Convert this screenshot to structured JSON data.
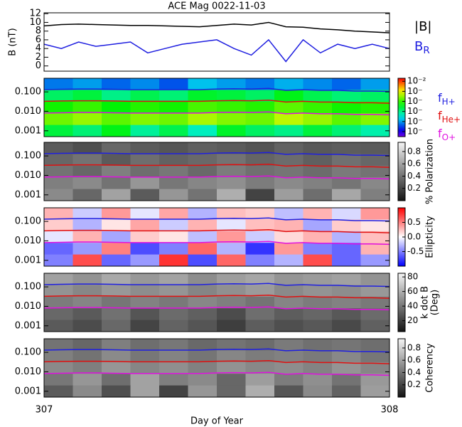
{
  "chart_data": [
    {
      "type": "line",
      "title": "ACE Mag 0022-11-03",
      "ylabel": "B (nT)",
      "xlim": [
        307,
        308
      ],
      "ylim": [
        -1.2,
        12.2
      ],
      "yticks": [
        0,
        2,
        4,
        6,
        8,
        10,
        12
      ],
      "x": [
        307,
        307.05,
        307.1,
        307.15,
        307.2,
        307.25,
        307.3,
        307.35,
        307.4,
        307.45,
        307.5,
        307.55,
        307.6,
        307.65,
        307.7,
        307.75,
        307.8,
        307.85,
        307.9,
        307.95,
        308
      ],
      "series": [
        {
          "name": "|B|",
          "color": "#000000",
          "values": [
            9.2,
            9.5,
            9.6,
            9.5,
            9.4,
            9.3,
            9.3,
            9.2,
            9.1,
            9.0,
            9.3,
            9.6,
            9.4,
            10.0,
            9.0,
            8.9,
            8.5,
            8.3,
            8.0,
            7.8,
            7.6
          ]
        },
        {
          "name": "B",
          "subscript": "R",
          "color": "#1f1fe0",
          "values": [
            5,
            4,
            5.5,
            4.5,
            5,
            5.5,
            3,
            4,
            5,
            5.5,
            6,
            4,
            2.5,
            6,
            1,
            6,
            3,
            5,
            4,
            5,
            4
          ]
        }
      ]
    },
    {
      "type": "heatmap",
      "colormap": "rainbow",
      "xlim": [
        307,
        308
      ],
      "ylim": [
        0.0005,
        0.5
      ],
      "log_y": true,
      "yticks": [
        {
          "value": 0.001,
          "label": "0.001"
        },
        {
          "value": 0.01,
          "label": "0.010"
        },
        {
          "value": 0.1,
          "label": "0.100"
        }
      ],
      "clim": [
        -7.5,
        -1.7
      ],
      "colorbar_ticks": [
        {
          "value": -2,
          "label": "10⁻²"
        },
        {
          "value": -3,
          "label": "10⁻"
        },
        {
          "value": -4,
          "label": "10⁻"
        },
        {
          "value": -5,
          "label": "10⁻"
        },
        {
          "value": -6,
          "label": "10⁻"
        },
        {
          "value": -7,
          "label": "10⁻"
        }
      ],
      "z": [
        [
          -6.2,
          -6.0,
          -6.3,
          -6.1,
          -6.4,
          -5.8,
          -6.0,
          -6.2,
          -5.9,
          -6.1,
          -6.3,
          -6.0
        ],
        [
          -4.8,
          -4.6,
          -5.0,
          -4.7,
          -4.9,
          -4.5,
          -4.6,
          -4.8,
          -4.4,
          -4.7,
          -4.9,
          -4.8
        ],
        [
          -4.2,
          -4.0,
          -4.3,
          -4.1,
          -4.2,
          -3.9,
          -4.0,
          -4.1,
          -3.8,
          -4.0,
          -4.2,
          -4.1
        ],
        [
          -3.7,
          -3.5,
          -3.8,
          -3.6,
          -3.7,
          -3.4,
          -3.6,
          -3.7,
          -3.3,
          -3.5,
          -3.8,
          -3.6
        ],
        [
          -4.6,
          -4.9,
          -4.4,
          -5.1,
          -4.7,
          -5.3,
          -4.5,
          -4.8,
          -5.0,
          -4.6,
          -4.9,
          -5.2
        ]
      ],
      "x": [
        307,
        307.05,
        307.1,
        307.15,
        307.2,
        307.25,
        307.3,
        307.35,
        307.4,
        307.45,
        307.5,
        307.55,
        307.6,
        307.65,
        307.7,
        307.75,
        307.8,
        307.85,
        307.9,
        307.95,
        308
      ],
      "series": [
        {
          "name": "f",
          "subscript": "H+",
          "color": "#1f1fe0",
          "values": [
            0.13,
            0.135,
            0.14,
            0.14,
            0.135,
            0.13,
            0.13,
            0.13,
            0.13,
            0.13,
            0.14,
            0.145,
            0.14,
            0.15,
            0.12,
            0.13,
            0.12,
            0.12,
            0.11,
            0.11,
            0.105
          ]
        },
        {
          "name": "f",
          "subscript": "He+",
          "color": "#e01010",
          "values": [
            0.0325,
            0.034,
            0.035,
            0.035,
            0.034,
            0.0325,
            0.0325,
            0.0325,
            0.0325,
            0.0325,
            0.035,
            0.036,
            0.035,
            0.0375,
            0.03,
            0.0325,
            0.03,
            0.03,
            0.0275,
            0.0275,
            0.026
          ]
        },
        {
          "name": "f",
          "subscript": "O+",
          "color": "#e010e0",
          "values": [
            0.0081,
            0.0084,
            0.0088,
            0.0088,
            0.0084,
            0.0081,
            0.0081,
            0.0081,
            0.0081,
            0.0081,
            0.0088,
            0.0091,
            0.0088,
            0.0094,
            0.0075,
            0.0081,
            0.0075,
            0.0075,
            0.0069,
            0.0069,
            0.0066
          ]
        }
      ]
    },
    {
      "type": "heatmap",
      "colormap": "gray",
      "xlim": [
        307,
        308
      ],
      "ylim": [
        0.0005,
        0.5
      ],
      "log_y": true,
      "yticks": [
        {
          "value": 0.001,
          "label": "0.001"
        },
        {
          "value": 0.01,
          "label": "0.010"
        },
        {
          "value": 0.1,
          "label": "0.100"
        }
      ],
      "clim": [
        0,
        0.95
      ],
      "colorbar_ticks": [
        0.2,
        0.4,
        0.6,
        0.8
      ],
      "colorbar_label": [
        "% Polarization"
      ],
      "z": [
        [
          0.3,
          0.25,
          0.35,
          0.3,
          0.28,
          0.32,
          0.3,
          0.27,
          0.33,
          0.29,
          0.31,
          0.3
        ],
        [
          0.35,
          0.4,
          0.3,
          0.38,
          0.33,
          0.36,
          0.4,
          0.34,
          0.37,
          0.32,
          0.39,
          0.35
        ],
        [
          0.4,
          0.35,
          0.45,
          0.38,
          0.42,
          0.36,
          0.44,
          0.39,
          0.41,
          0.37,
          0.43,
          0.4
        ],
        [
          0.45,
          0.5,
          0.4,
          0.55,
          0.42,
          0.48,
          0.52,
          0.44,
          0.5,
          0.46,
          0.41,
          0.49
        ],
        [
          0.5,
          0.35,
          0.6,
          0.3,
          0.55,
          0.4,
          0.65,
          0.2,
          0.58,
          0.38,
          0.62,
          0.45
        ]
      ]
    },
    {
      "type": "heatmap",
      "colormap": "bwr",
      "xlim": [
        307,
        308
      ],
      "ylim": [
        0.0005,
        0.5
      ],
      "log_y": true,
      "yticks": [
        {
          "value": 0.001,
          "label": "0.001"
        },
        {
          "value": 0.01,
          "label": "0.010"
        },
        {
          "value": 0.1,
          "label": "0.100"
        }
      ],
      "clim": [
        -1,
        1
      ],
      "colorbar_ticks": [
        0.5,
        {
          "value": 0,
          "label": "0.0"
        },
        -0.5
      ],
      "colorbar_label": [
        "Ellipticity"
      ],
      "z": [
        [
          0.3,
          -0.2,
          0.4,
          -0.1,
          0.35,
          -0.3,
          0.25,
          0.2,
          -0.25,
          0.3,
          -0.15,
          0.4
        ],
        [
          0.2,
          -0.3,
          0.1,
          0.35,
          -0.2,
          0.3,
          -0.1,
          0.25,
          0.3,
          -0.35,
          0.2,
          0.1
        ],
        [
          -0.1,
          0.3,
          -0.35,
          0.2,
          0.1,
          -0.25,
          0.4,
          -0.2,
          0.15,
          0.3,
          -0.3,
          0.25
        ],
        [
          -0.6,
          -0.4,
          0.5,
          -0.7,
          -0.5,
          0.6,
          -0.3,
          -0.8,
          0.4,
          -0.5,
          -0.6,
          0.3
        ],
        [
          -0.5,
          0.7,
          -0.6,
          -0.4,
          0.8,
          -0.7,
          0.6,
          -0.5,
          -0.3,
          0.7,
          -0.6,
          -0.4
        ]
      ]
    },
    {
      "type": "heatmap",
      "colormap": "gray",
      "xlim": [
        307,
        308
      ],
      "ylim": [
        0.0005,
        0.5
      ],
      "log_y": true,
      "yticks": [
        {
          "value": 0.001,
          "label": "0.001"
        },
        {
          "value": 0.01,
          "label": "0.010"
        },
        {
          "value": 0.1,
          "label": "0.100"
        }
      ],
      "clim": [
        5,
        85
      ],
      "colorbar_ticks": [
        20,
        40,
        60,
        80
      ],
      "colorbar_label": [
        "k dot B",
        "(Deg)"
      ],
      "z": [
        [
          55,
          50,
          58,
          52,
          56,
          48,
          54,
          57,
          51,
          53,
          55,
          50
        ],
        [
          50,
          46,
          52,
          48,
          51,
          45,
          49,
          53,
          47,
          50,
          48,
          52
        ],
        [
          42,
          45,
          40,
          44,
          41,
          46,
          43,
          39,
          45,
          42,
          44,
          41
        ],
        [
          35,
          30,
          38,
          28,
          36,
          32,
          25,
          37,
          31,
          34,
          29,
          36
        ],
        [
          30,
          25,
          35,
          22,
          33,
          28,
          20,
          31,
          26,
          29,
          24,
          32
        ]
      ]
    },
    {
      "type": "heatmap",
      "colormap": "gray",
      "xlim": [
        307,
        308
      ],
      "ylim": [
        0.0005,
        0.5
      ],
      "log_y": true,
      "yticks": [
        {
          "value": 0.001,
          "label": "0.001"
        },
        {
          "value": 0.01,
          "label": "0.010"
        },
        {
          "value": 0.1,
          "label": "0.100"
        }
      ],
      "clim": [
        0,
        0.95
      ],
      "colorbar_ticks": [
        0.2,
        0.4,
        0.6,
        0.8
      ],
      "colorbar_label": [
        "Coherency"
      ],
      "xticks": [
        307,
        308
      ],
      "xlabel": "Day of Year",
      "z": [
        [
          0.4,
          0.35,
          0.45,
          0.38,
          0.42,
          0.36,
          0.4,
          0.37,
          0.43,
          0.39,
          0.41,
          0.38
        ],
        [
          0.45,
          0.4,
          0.5,
          0.42,
          0.47,
          0.41,
          0.48,
          0.44,
          0.46,
          0.43,
          0.49,
          0.42
        ],
        [
          0.5,
          0.45,
          0.55,
          0.48,
          0.52,
          0.46,
          0.53,
          0.49,
          0.51,
          0.47,
          0.54,
          0.48
        ],
        [
          0.42,
          0.55,
          0.38,
          0.6,
          0.45,
          0.5,
          0.35,
          0.58,
          0.44,
          0.52,
          0.4,
          0.56
        ],
        [
          0.3,
          0.5,
          0.25,
          0.6,
          0.2,
          0.55,
          0.35,
          0.65,
          0.28,
          0.5,
          0.33,
          0.58
        ]
      ]
    }
  ]
}
